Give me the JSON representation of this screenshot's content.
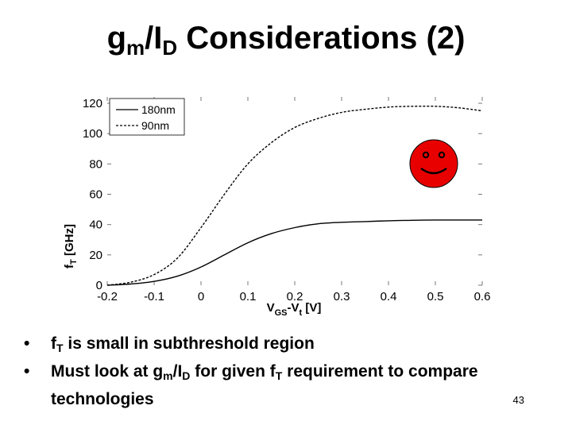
{
  "slide": {
    "title": {
      "main": "g",
      "sub1": "m",
      "mid": "/I",
      "sub2": "D",
      "rest": " Considerations (2)"
    },
    "bullets": [
      {
        "pre": "f",
        "sub": "T",
        "post": " is small in subthreshold region"
      },
      {
        "pre": "Must look at g",
        "sub": "m",
        "mid": "/I",
        "sub2": "D",
        "mid2": " for given f",
        "sub3": "T",
        "post": " requirement to compare",
        "cont": "technologies"
      }
    ],
    "bullet_glyph": "•",
    "page_number": "43"
  },
  "chart_data": {
    "type": "line",
    "ylabel": {
      "main": "f",
      "sub": "T",
      "rest": " [GHz]"
    },
    "xlabel": {
      "main": "V",
      "sub1": "GS",
      "mid": "-V",
      "sub2": "t",
      "rest": " [V]"
    },
    "xlim": [
      -0.2,
      0.6
    ],
    "ylim": [
      0,
      120
    ],
    "xticks": [
      "-0.2",
      "-0.1",
      "0",
      "0.1",
      "0.2",
      "0.3",
      "0.4",
      "0.5",
      "0.6"
    ],
    "yticks": [
      "0",
      "20",
      "40",
      "60",
      "80",
      "100",
      "120"
    ],
    "legend_position": "top-left",
    "series": [
      {
        "name": "180nm",
        "style": "solid",
        "x": [
          -0.2,
          -0.15,
          -0.1,
          -0.05,
          0,
          0.05,
          0.1,
          0.15,
          0.2,
          0.25,
          0.3,
          0.35,
          0.4,
          0.45,
          0.5,
          0.55,
          0.6
        ],
        "y": [
          0,
          0.8,
          2.5,
          6,
          12,
          20,
          28,
          34,
          38,
          40.5,
          41.5,
          42,
          42.5,
          42.8,
          43,
          43,
          43
        ]
      },
      {
        "name": "90nm",
        "style": "dashed",
        "x": [
          -0.2,
          -0.15,
          -0.1,
          -0.05,
          0,
          0.05,
          0.1,
          0.15,
          0.2,
          0.25,
          0.3,
          0.35,
          0.4,
          0.45,
          0.5,
          0.55,
          0.6
        ],
        "y": [
          0,
          2,
          7,
          18,
          38,
          60,
          80,
          94,
          104,
          110,
          114,
          116,
          117.5,
          118,
          118,
          117,
          115
        ]
      }
    ],
    "annotation_icon": "smiley-face-icon",
    "annotation_color": "#e80000"
  }
}
